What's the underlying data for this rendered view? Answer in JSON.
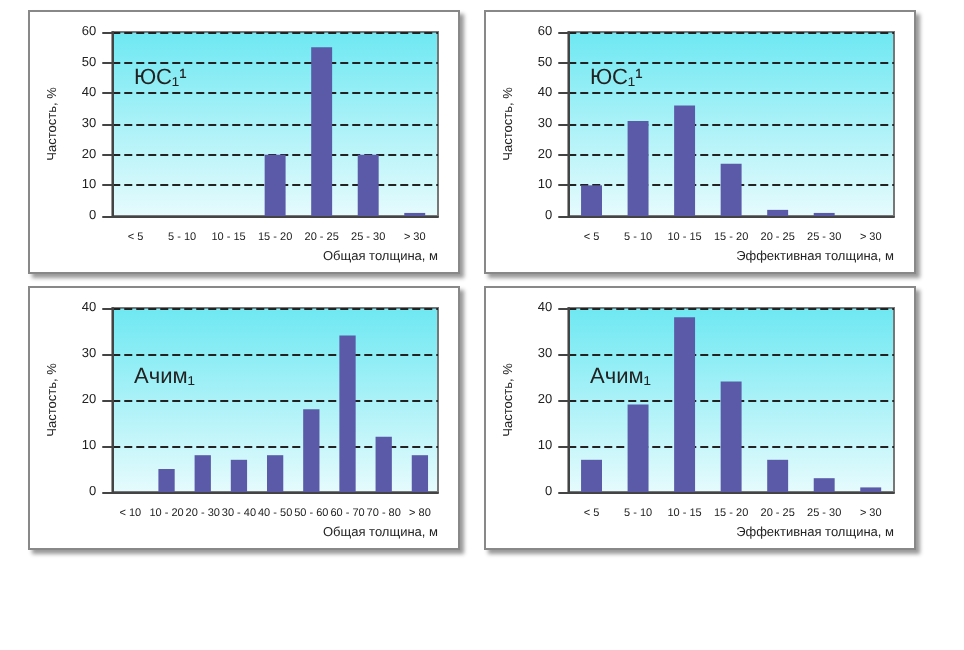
{
  "chart_data": [
    {
      "type": "bar",
      "categories": [
        "< 5",
        "5 - 10",
        "10 - 15",
        "15 - 20",
        "20 - 25",
        "25 - 30",
        "> 30"
      ],
      "values": [
        0,
        0,
        0,
        20,
        55,
        20,
        1
      ],
      "color": "#5a5aa8",
      "ylim": [
        0,
        60
      ],
      "yticks": [
        0,
        10,
        20,
        30,
        40,
        50,
        60
      ],
      "ylabel": "Частость, %",
      "xlabel": "Общая толщина, м",
      "annotations": [
        "ЮС₁¹"
      ],
      "grid": "y"
    },
    {
      "type": "bar",
      "categories": [
        "< 5",
        "5 - 10",
        "10 - 15",
        "15 - 20",
        "20 - 25",
        "25 - 30",
        "> 30"
      ],
      "values": [
        10,
        31,
        36,
        17,
        2,
        1,
        0
      ],
      "color": "#5a5aa8",
      "ylim": [
        0,
        60
      ],
      "yticks": [
        0,
        10,
        20,
        30,
        40,
        50,
        60
      ],
      "ylabel": "Частость, %",
      "xlabel": "Эффективная толщина, м",
      "annotations": [
        "ЮС₁¹"
      ],
      "grid": "y"
    },
    {
      "type": "bar",
      "categories": [
        "< 10",
        "10 - 20",
        "20 - 30",
        "30 - 40",
        "40 - 50",
        "50 - 60",
        "60 - 70",
        "70 - 80",
        "> 80"
      ],
      "values": [
        0,
        5,
        8,
        7,
        8,
        18,
        34,
        12,
        8
      ],
      "color": "#5a5aa8",
      "ylim": [
        0,
        40
      ],
      "yticks": [
        0,
        10,
        20,
        30,
        40
      ],
      "ylabel": "Частость, %",
      "xlabel": "Общая толщина, м",
      "annotations": [
        "Ачим₁"
      ],
      "grid": "y"
    },
    {
      "type": "bar",
      "categories": [
        "< 5",
        "5 - 10",
        "10 - 15",
        "15 - 20",
        "20 - 25",
        "25 - 30",
        "> 30"
      ],
      "values": [
        7,
        19,
        38,
        24,
        7,
        3,
        1
      ],
      "color": "#5a5aa8",
      "ylim": [
        0,
        40
      ],
      "yticks": [
        0,
        10,
        20,
        30,
        40
      ],
      "ylabel": "Частость, %",
      "xlabel": "Эффективная толщина, м",
      "annotations": [
        "Ачим₁"
      ],
      "grid": "y"
    }
  ]
}
